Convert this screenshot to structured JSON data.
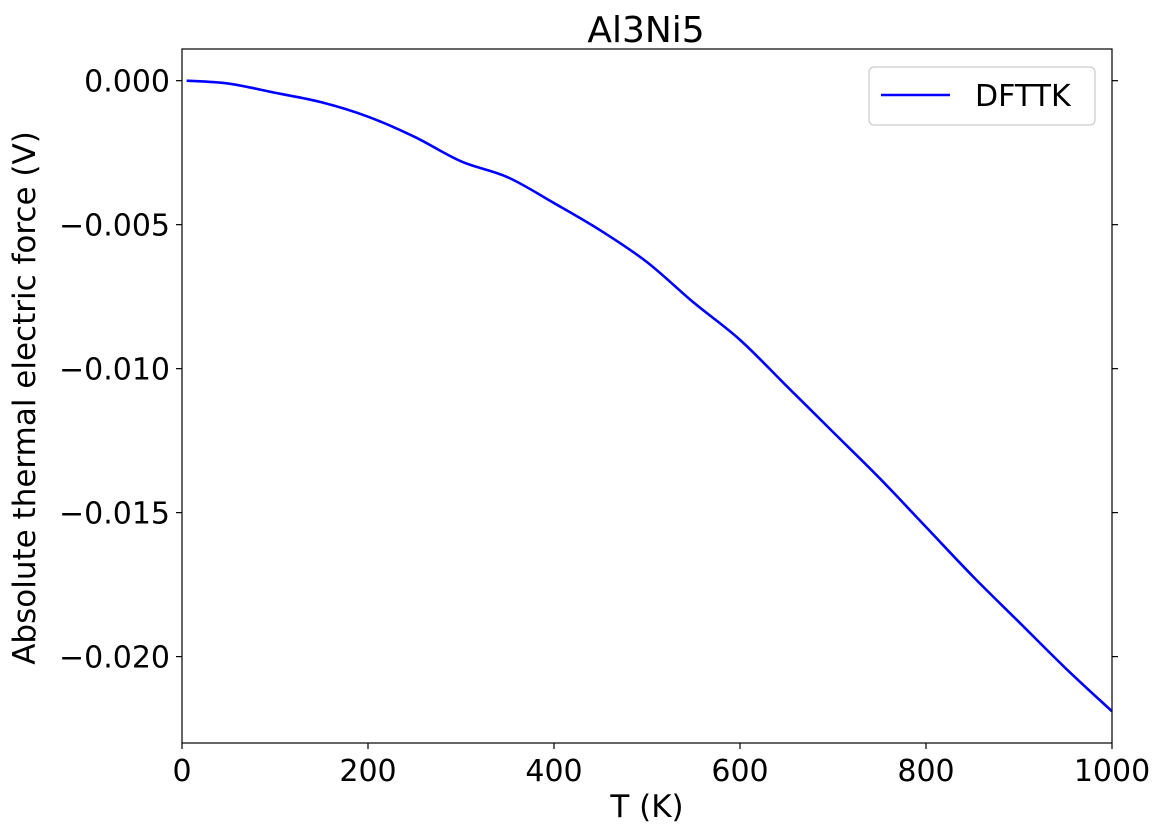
{
  "chart_data": {
    "type": "line",
    "title": "Al3Ni5",
    "xlabel": "T (K)",
    "ylabel": "Absolute thermal electric force (V)",
    "xlim": [
      0,
      1000
    ],
    "ylim": [
      -0.023,
      0.0011
    ],
    "xticks": [
      0,
      200,
      400,
      600,
      800,
      1000
    ],
    "xtick_labels": [
      "0",
      "200",
      "400",
      "600",
      "800",
      "1000"
    ],
    "yticks": [
      0.0,
      -0.005,
      -0.01,
      -0.015,
      -0.02
    ],
    "ytick_labels": [
      "0.000",
      "−0.005",
      "−0.010",
      "−0.015",
      "−0.020"
    ],
    "grid": false,
    "legend_position": "upper right",
    "series": [
      {
        "name": "DFTTK",
        "color": "#0000ff",
        "x": [
          5,
          50,
          100,
          150,
          200,
          250,
          300,
          350,
          400,
          450,
          500,
          550,
          600,
          650,
          700,
          750,
          800,
          850,
          900,
          950,
          1000
        ],
        "y": [
          0.0,
          -0.0001,
          -0.00042,
          -0.00075,
          -0.00125,
          -0.00195,
          -0.0028,
          -0.00335,
          -0.00425,
          -0.0052,
          -0.0063,
          -0.0077,
          -0.009,
          -0.0106,
          -0.0122,
          -0.0138,
          -0.0155,
          -0.0172,
          -0.0188,
          -0.0204,
          -0.0219
        ]
      }
    ]
  }
}
